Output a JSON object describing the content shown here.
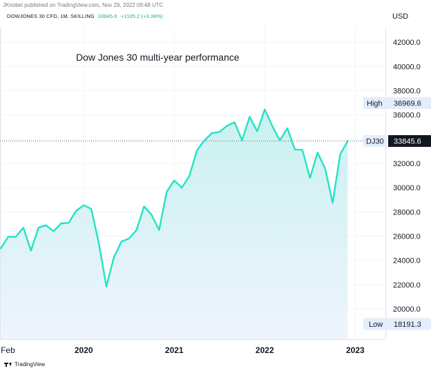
{
  "header": {
    "published_text": "JKnobel published on TradingView.com, Nov 29, 2022 09:48 UTC",
    "symbol_text": "DOWJONES 30 CFD, 1M, SKILLING",
    "last_price": "33845.6",
    "change_text": "+1105.2 (+3.38%)",
    "currency": "USD"
  },
  "colors": {
    "line": "#22e3c4",
    "fill_top": "#c9f1f1",
    "fill_bottom": "#eef4fc",
    "grid": "#f0f3fa",
    "axis_bg": "#e3eefb"
  },
  "brand": {
    "label": "TradingView",
    "icon": "tradingview-logo-icon"
  },
  "chart_data": {
    "type": "area",
    "title": "Dow Jones 30  multi-year performance",
    "x_ticks": [
      {
        "label": "Feb",
        "index": 0
      },
      {
        "label": "2020",
        "index": 11
      },
      {
        "label": "2021",
        "index": 23
      },
      {
        "label": "2022",
        "index": 35
      },
      {
        "label": "2023",
        "index": 47
      }
    ],
    "x_range": [
      -0.1,
      51
    ],
    "ylim": [
      17500,
      43200
    ],
    "y_ticks": [
      20000,
      22000,
      24000,
      26000,
      28000,
      30000,
      32000,
      34000,
      36000,
      38000,
      40000,
      42000
    ],
    "y_tick_labels": [
      "20000.0",
      "22000.0",
      "24000.0",
      "26000.0",
      "28000.0",
      "30000.0",
      "32000.0",
      "34000.0",
      "36000.0",
      "38000.0",
      "40000.0",
      "42000.0"
    ],
    "values": [
      25000,
      25950,
      25950,
      26700,
      24800,
      26700,
      26900,
      26400,
      27050,
      27100,
      28100,
      28550,
      28250,
      25450,
      21850,
      24250,
      25550,
      25800,
      26500,
      28450,
      27750,
      26500,
      29650,
      30600,
      30000,
      30950,
      33050,
      33900,
      34500,
      34600,
      35100,
      35400,
      33900,
      35850,
      34650,
      36450,
      35100,
      33900,
      34900,
      33150,
      33100,
      30800,
      32900,
      31600,
      28750,
      32750,
      33845.6
    ],
    "last_value": 33845.6,
    "last_label": "DJ30",
    "last_value_text": "33845.6",
    "high": {
      "label": "High",
      "value": 36969.6,
      "value_text": "36969.6"
    },
    "low": {
      "label": "Low",
      "value": 18191.3,
      "value_text": "18191.3"
    }
  }
}
